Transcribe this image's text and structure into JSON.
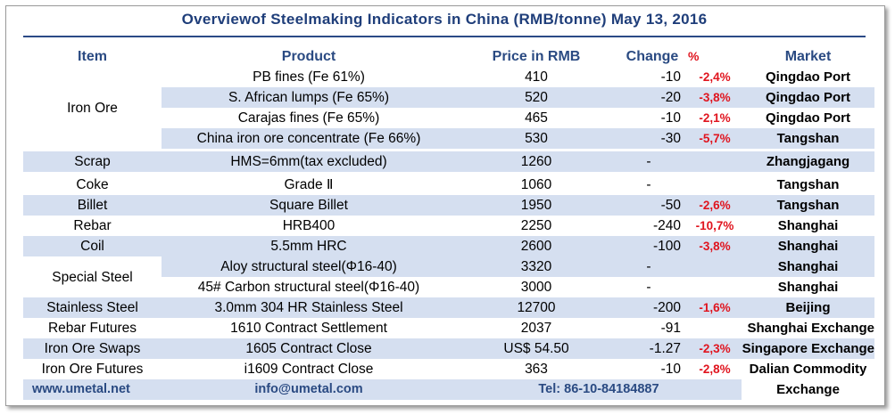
{
  "title": "Overviewof Steelmaking Indicators in China (RMB/tonne) May 13, 2016",
  "headers": {
    "item": "Item",
    "product": "Product",
    "price": "Price in RMB",
    "change": "Change",
    "pct": "%",
    "market": "Market"
  },
  "groups": {
    "iron_ore": "Iron Ore",
    "scrap": "Scrap",
    "coke": "Coke",
    "billet": "Billet",
    "rebar": "Rebar",
    "coil": "Coil",
    "special_steel": "Special Steel",
    "stainless": "Stainless Steel",
    "rebar_futures": "Rebar Futures",
    "iron_ore_swaps": "Iron Ore Swaps",
    "iron_ore_futures": "Iron Ore Futures"
  },
  "rows": [
    {
      "product": "PB fines (Fe 61%)",
      "price": "410",
      "change": "-10",
      "pct": "-2,4%",
      "market": "Qingdao Port"
    },
    {
      "product": "S. African lumps (Fe 65%)",
      "price": "520",
      "change": "-20",
      "pct": "-3,8%",
      "market": "Qingdao Port"
    },
    {
      "product": "Carajas fines (Fe 65%)",
      "price": "465",
      "change": "-10",
      "pct": "-2,1%",
      "market": "Qingdao Port"
    },
    {
      "product": "China iron ore concentrate (Fe 66%)",
      "price": "530",
      "change": "-30",
      "pct": "-5,7%",
      "market": "Tangshan"
    },
    {
      "product": "HMS=6mm(tax excluded)",
      "price": "1260",
      "change": "-",
      "pct": "",
      "market": "Zhangjagang"
    },
    {
      "product": "Grade Ⅱ",
      "price": "1060",
      "change": "-",
      "pct": "",
      "market": "Tangshan"
    },
    {
      "product": "Square Billet",
      "price": "1950",
      "change": "-50",
      "pct": "-2,6%",
      "market": "Tangshan"
    },
    {
      "product": "HRB400",
      "price": "2250",
      "change": "-240",
      "pct": "-10,7%",
      "market": "Shanghai"
    },
    {
      "product": "5.5mm HRC",
      "price": "2600",
      "change": "-100",
      "pct": "-3,8%",
      "market": "Shanghai"
    },
    {
      "product": "Aloy structural steel(Φ16-40)",
      "price": "3320",
      "change": "-",
      "pct": "",
      "market": "Shanghai"
    },
    {
      "product": "45# Carbon structural steel(Φ16-40)",
      "price": "3000",
      "change": "-",
      "pct": "",
      "market": "Shanghai"
    },
    {
      "product": "3.0mm 304 HR Stainless Steel",
      "price": "12700",
      "change": "-200",
      "pct": "-1,6%",
      "market": "Beijing"
    },
    {
      "product": "1610 Contract Settlement",
      "price": "2037",
      "change": "-91",
      "pct": "",
      "market": "Shanghai Exchange"
    },
    {
      "product": "1605 Contract Close",
      "price": "US$ 54.50",
      "change": "-1.27",
      "pct": "-2,3%",
      "market": "Singapore Exchange"
    },
    {
      "product": "i1609 Contract Close",
      "price": "363",
      "change": "-10",
      "pct": "-2,8%",
      "market": "Dalian Commodity"
    }
  ],
  "footer": {
    "website": "www.umetal.net",
    "email": "info@umetal.com",
    "tel": "Tel: 86-10-84184887",
    "market_cont": "Exchange"
  },
  "colors": {
    "header_text": "#2a4a82",
    "shade": "#d5dff0",
    "negative_pct": "#e0141e"
  }
}
